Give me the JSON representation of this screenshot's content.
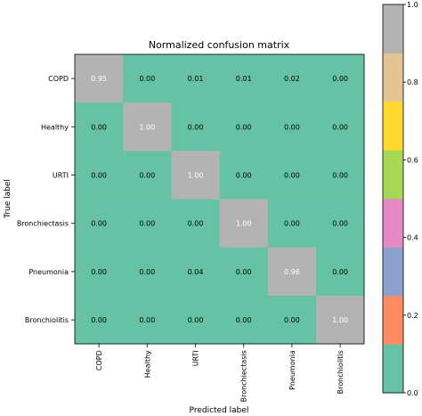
{
  "chart_data": {
    "type": "heatmap",
    "title": "Normalized confusion matrix",
    "xlabel": "Predicted label",
    "ylabel": "True label",
    "x_categories": [
      "COPD",
      "Healthy",
      "URTI",
      "Bronchiectasis",
      "Pneumonia",
      "Bronchiolitis"
    ],
    "y_categories": [
      "COPD",
      "Healthy",
      "URTI",
      "Bronchiectasis",
      "Pneumonia",
      "Bronchiolitis"
    ],
    "values": [
      [
        0.95,
        0.0,
        0.01,
        0.01,
        0.02,
        0.0
      ],
      [
        0.0,
        1.0,
        0.0,
        0.0,
        0.0,
        0.0
      ],
      [
        0.0,
        0.0,
        1.0,
        0.0,
        0.0,
        0.0
      ],
      [
        0.0,
        0.0,
        0.0,
        1.0,
        0.0,
        0.0
      ],
      [
        0.0,
        0.0,
        0.04,
        0.0,
        0.96,
        0.0
      ],
      [
        0.0,
        0.0,
        0.0,
        0.0,
        0.0,
        1.0
      ]
    ],
    "value_labels": [
      [
        "0.95",
        "0.00",
        "0.01",
        "0.01",
        "0.02",
        "0.00"
      ],
      [
        "0.00",
        "1.00",
        "0.00",
        "0.00",
        "0.00",
        "0.00"
      ],
      [
        "0.00",
        "0.00",
        "1.00",
        "0.00",
        "0.00",
        "0.00"
      ],
      [
        "0.00",
        "0.00",
        "0.00",
        "1.00",
        "0.00",
        "0.00"
      ],
      [
        "0.00",
        "0.00",
        "0.04",
        "0.00",
        "0.96",
        "0.00"
      ],
      [
        "0.00",
        "0.00",
        "0.00",
        "0.00",
        "0.00",
        "1.00"
      ]
    ],
    "colorbar": {
      "range": [
        0.0,
        1.0
      ],
      "ticks": [
        0.0,
        0.2,
        0.4,
        0.6,
        0.8,
        1.0
      ],
      "tick_labels": [
        "0.0",
        "0.2",
        "0.4",
        "0.6",
        "0.8",
        "1.0"
      ],
      "colors": [
        "#66c2a5",
        "#fc8d62",
        "#8da0cb",
        "#e78ac3",
        "#a6d854",
        "#ffd92f",
        "#e5c494",
        "#b3b3b3"
      ]
    }
  }
}
